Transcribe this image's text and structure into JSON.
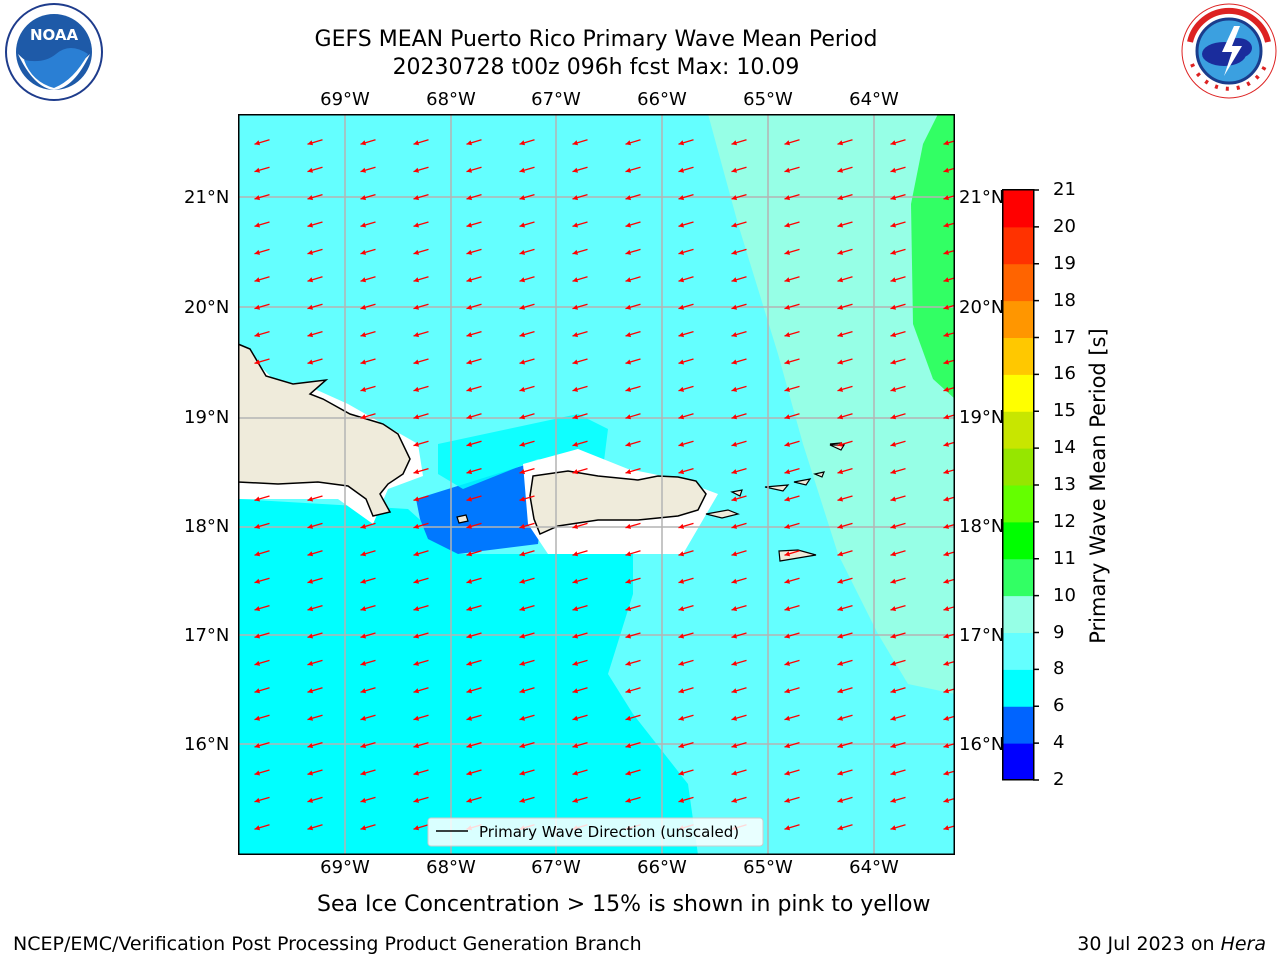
{
  "header": {
    "title_line1": "GEFS MEAN Puerto Rico Primary Wave Mean Period",
    "title_line2": "20230728 t00z 096h fcst   Max: 10.09"
  },
  "logos": {
    "noaa_text": "NOAA",
    "nws_text": "NATIONAL WEATHER SERVICE"
  },
  "map": {
    "lon_ticks": [
      "69°W",
      "68°W",
      "67°W",
      "66°W",
      "65°W",
      "64°W"
    ],
    "lat_ticks": [
      "21°N",
      "20°N",
      "19°N",
      "18°N",
      "17°N",
      "16°N"
    ],
    "legend_label": "Primary Wave Direction (unscaled)",
    "arrow_color": "#ff0000",
    "land_color": "#efebdb"
  },
  "colorbar": {
    "label": "Primary Wave Mean Period [s]",
    "ticks": [
      "2",
      "4",
      "6",
      "8",
      "9",
      "10",
      "11",
      "12",
      "13",
      "14",
      "15",
      "16",
      "17",
      "18",
      "19",
      "20",
      "21"
    ],
    "colors": [
      "#0000ff",
      "#0064ff",
      "#00ffff",
      "#64ffff",
      "#96ffe6",
      "#32ff64",
      "#00ff00",
      "#64ff00",
      "#96e600",
      "#c8e600",
      "#ffff00",
      "#ffc800",
      "#ff9600",
      "#ff6400",
      "#ff3200",
      "#ff0000"
    ]
  },
  "notes": {
    "sea_ice": "Sea Ice Concentration > 15% is shown in pink to yellow",
    "credit": "NCEP/EMC/Verification Post Processing Product Generation Branch",
    "date_text": "30 Jul 2023 on ",
    "machine": "Hera"
  }
}
